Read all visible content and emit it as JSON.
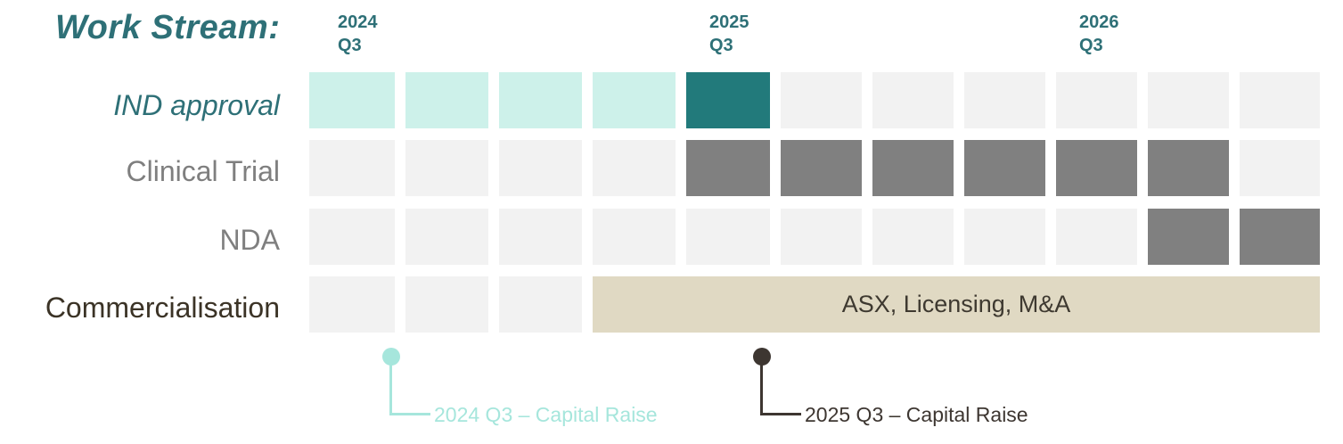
{
  "title": "Work Stream:",
  "quarter_labels": [
    {
      "year": "2024",
      "quarter": "Q3"
    },
    {
      "year": "2025",
      "quarter": "Q3"
    },
    {
      "year": "2026",
      "quarter": "Q3"
    }
  ],
  "rows": [
    {
      "label": "IND approval",
      "color": "#2e7077"
    },
    {
      "label": "Clinical Trial",
      "color": "#7f7f7f"
    },
    {
      "label": "NDA",
      "color": "#7f7f7f"
    },
    {
      "label": "Commercialisation",
      "color": "#3b3326"
    }
  ],
  "commercialisation_band": "ASX, Licensing, M&A",
  "milestones": [
    {
      "label": "2024 Q3 – Capital Raise",
      "color": "#a6e6dc"
    },
    {
      "label": "2025 Q3 – Capital Raise",
      "color": "#3d3631"
    }
  ],
  "colors": {
    "accent": "#2e7077",
    "ind_light": "#cdf1ea",
    "ind_dark": "#227a7b",
    "active_gray": "#808080",
    "empty": "#f2f2f2",
    "band": "#e0d9c3"
  }
}
